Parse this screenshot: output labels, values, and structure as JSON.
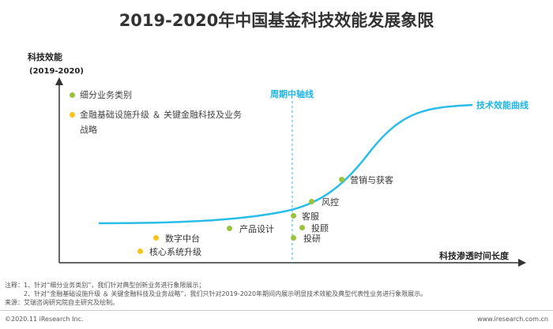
{
  "title": "2019-2020年中国基金科技效能发展象限",
  "y_axis": {
    "label": "科技效能",
    "sublabel": "(2019-2020)"
  },
  "x_axis": {
    "label": "科技渗透时间长度"
  },
  "midline_label": "周期中轴线",
  "curve_label": "技术效能曲线",
  "legend": [
    {
      "label": "细分业务类别",
      "color": "#9ac33c"
    },
    {
      "label": "金融基础设施升级 ＆ 关键金融科技及业务",
      "label2": "战略",
      "color": "#f7c31d"
    }
  ],
  "points": [
    {
      "label": "营销与获客",
      "color": "#9ac33c"
    },
    {
      "label": "风控",
      "color": "#9ac33c"
    },
    {
      "label": "客服",
      "color": "#9ac33c"
    },
    {
      "label": "投顾",
      "color": "#9ac33c"
    },
    {
      "label": "投研",
      "color": "#9ac33c"
    },
    {
      "label": "产品设计",
      "color": "#9ac33c"
    },
    {
      "label": "数字中台",
      "color": "#f7c31d"
    },
    {
      "label": "核心系统升级",
      "color": "#f7c31d"
    }
  ],
  "colors": {
    "curve": "#29bde8",
    "axis": "#333333",
    "midline": "#29bde8"
  },
  "notes": [
    "注释：1、针对“细分业务类别”，我们针对典型创新业务进行象限展示；",
    "2、针对“金融基础设施升级 ＆ 关键金融科技及业务战略”，我们只针对2019-2020年期间内展示明显技术效能及典型代表性业务进行象限展示。",
    "来源：艾瑞咨询研究院自主研究及绘制。"
  ],
  "footer": {
    "left": "©2020.11 iResearch Inc.",
    "right": "www.iresearch.com.cn"
  }
}
